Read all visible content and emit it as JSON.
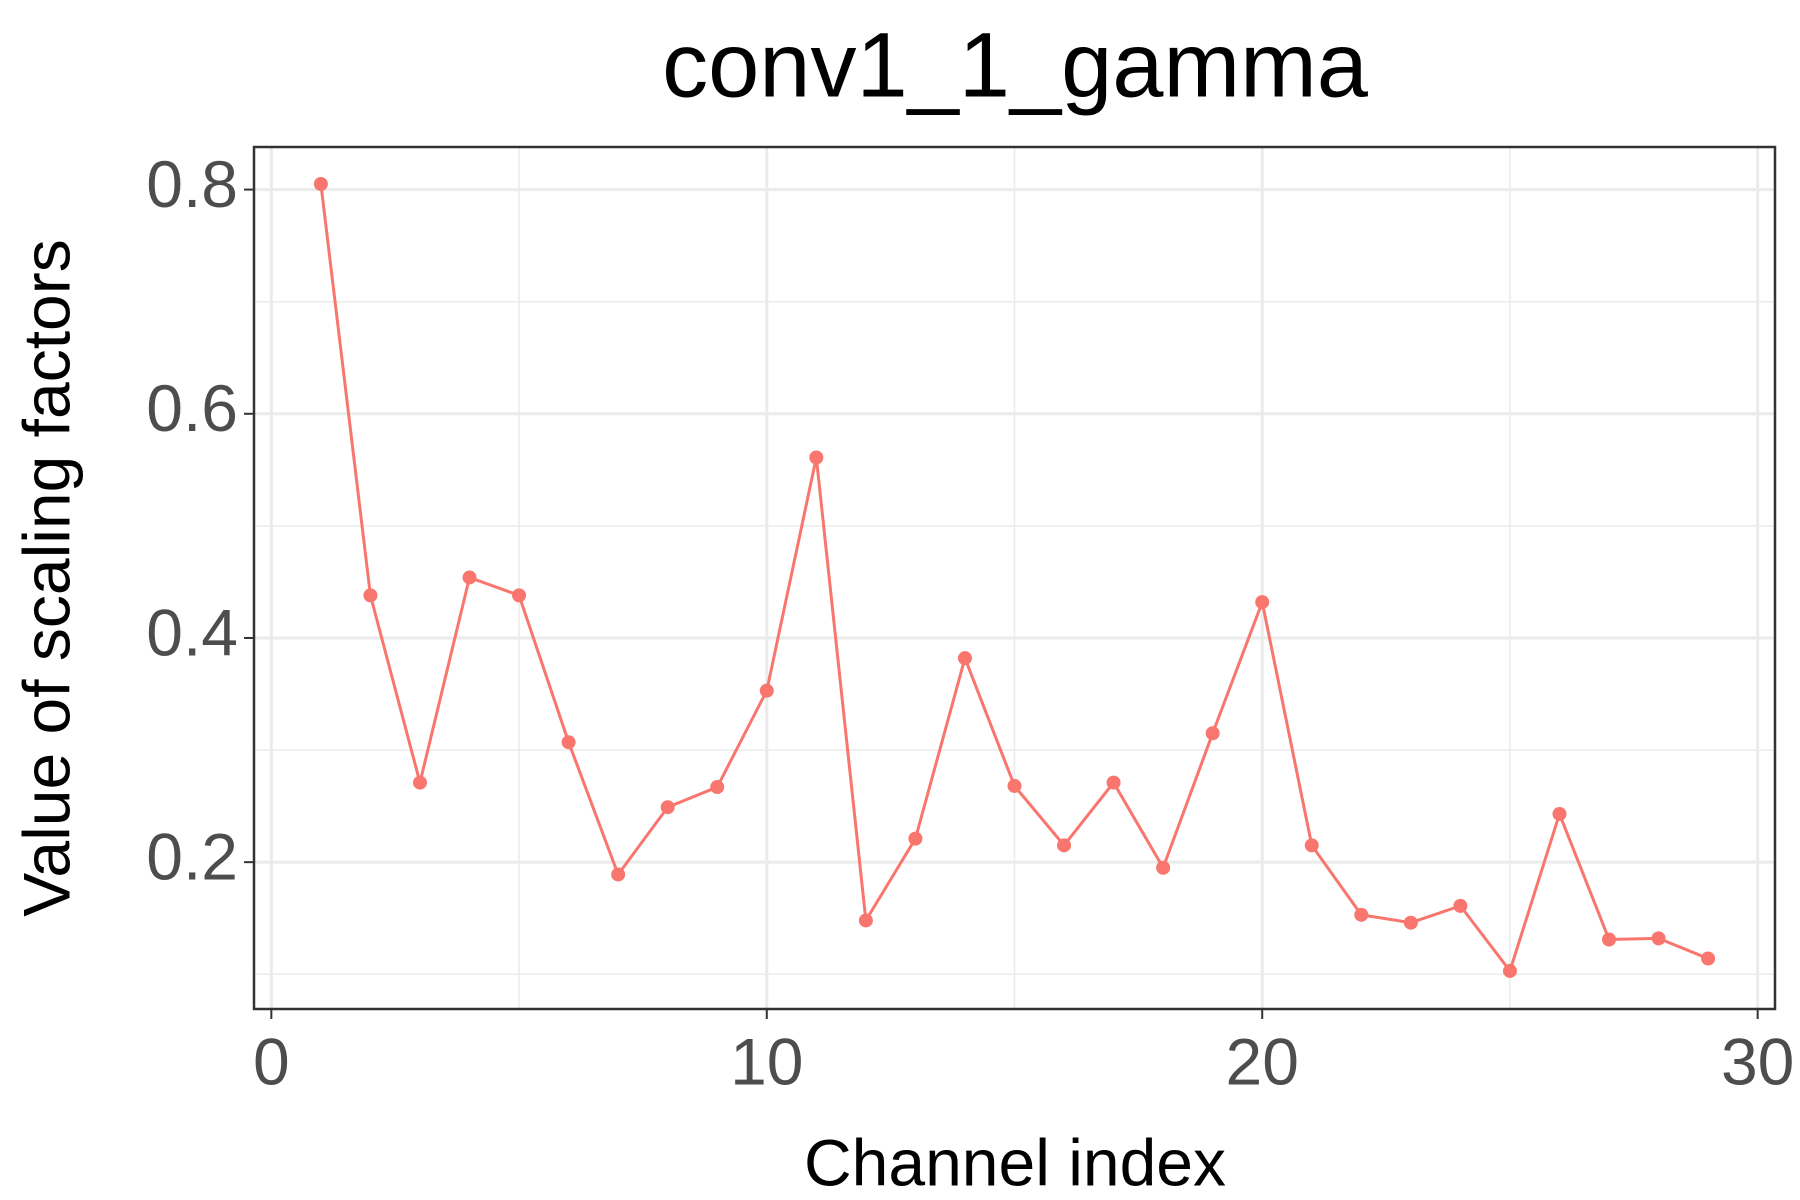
{
  "chart_data": {
    "type": "line",
    "title": "conv1_1_gamma",
    "x_label": "Channel index",
    "y_label": "Value of scaling factors",
    "x": [
      1,
      2,
      3,
      4,
      5,
      6,
      7,
      8,
      9,
      10,
      11,
      12,
      13,
      14,
      15,
      16,
      17,
      18,
      19,
      20,
      21,
      22,
      23,
      24,
      25,
      26,
      27,
      28,
      29
    ],
    "series": [
      {
        "name": "conv1_1_gamma",
        "color": "#f8766d",
        "values": [
          0.805,
          0.438,
          0.271,
          0.454,
          0.438,
          0.307,
          0.189,
          0.249,
          0.267,
          0.353,
          0.561,
          0.148,
          0.221,
          0.382,
          0.268,
          0.215,
          0.271,
          0.195,
          0.315,
          0.432,
          0.215,
          0.153,
          0.146,
          0.161,
          0.103,
          0.243,
          0.131,
          0.132,
          0.114
        ]
      }
    ],
    "xlim": [
      -0.35,
      30.35
    ],
    "ylim": [
      0.069,
      0.838
    ],
    "xticks": [
      0,
      10,
      20,
      30
    ],
    "yticks": [
      0.2,
      0.4,
      0.6,
      0.8
    ],
    "grid": true
  }
}
